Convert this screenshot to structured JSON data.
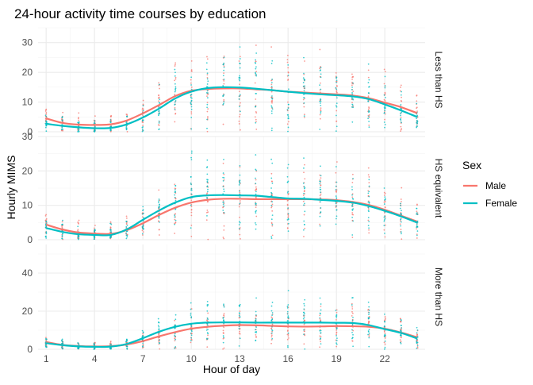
{
  "chart_data": {
    "type": "line",
    "title": "24-hour activity time courses by education",
    "xlabel": "Hour of day",
    "ylabel": "Hourly MIMS",
    "x_ticks": [
      1,
      4,
      7,
      10,
      13,
      16,
      19,
      22
    ],
    "xlim": [
      0.5,
      24.5
    ],
    "grid": true,
    "legend": {
      "title": "Sex",
      "placement": "right",
      "entries": [
        {
          "name": "Male",
          "color": "#F8766D"
        },
        {
          "name": "Female",
          "color": "#00BFC4"
        }
      ]
    },
    "x": [
      1,
      2,
      3,
      4,
      5,
      6,
      7,
      8,
      9,
      10,
      11,
      12,
      13,
      14,
      15,
      16,
      17,
      18,
      19,
      20,
      21,
      22,
      23,
      24
    ],
    "panels": [
      {
        "label": "Less than HS",
        "ylim": [
          0,
          35
        ],
        "y_ticks": [
          0,
          10,
          20,
          30
        ],
        "series": [
          {
            "name": "Male",
            "values": [
              4.5,
              3.0,
              2.4,
              2.3,
              2.5,
              3.8,
              6.2,
              9.0,
              12.0,
              13.8,
              14.4,
              14.6,
              14.6,
              14.3,
              14.0,
              13.5,
              13.2,
              12.9,
              12.6,
              12.2,
              11.3,
              9.8,
              8.3,
              6.3
            ]
          },
          {
            "name": "Female",
            "values": [
              2.7,
              2.0,
              1.5,
              1.2,
              1.3,
              2.5,
              4.8,
              7.8,
              11.2,
              13.5,
              14.7,
              15.0,
              14.9,
              14.5,
              14.0,
              13.5,
              13.0,
              12.6,
              12.3,
              11.9,
              11.0,
              9.2,
              7.2,
              5.0
            ]
          }
        ],
        "points_range": {
          "min": 0,
          "max": 34
        }
      },
      {
        "label": "HS equivalent",
        "ylim": [
          0,
          30
        ],
        "y_ticks": [
          0,
          10,
          20,
          30
        ],
        "series": [
          {
            "name": "Male",
            "values": [
              4.4,
              3.0,
              2.1,
              1.8,
              1.7,
              2.8,
              4.8,
              7.2,
              9.3,
              10.8,
              11.6,
              11.9,
              11.9,
              11.8,
              11.8,
              11.8,
              11.8,
              11.7,
              11.5,
              11.0,
              10.1,
              8.7,
              7.0,
              5.3
            ]
          },
          {
            "name": "Female",
            "values": [
              3.4,
              2.3,
              1.6,
              1.4,
              1.4,
              3.0,
              5.8,
              8.5,
              10.8,
              12.4,
              12.9,
              13.0,
              12.9,
              12.8,
              12.4,
              12.0,
              11.9,
              11.6,
              11.3,
              10.8,
              9.8,
              8.4,
              6.8,
              5.0
            ]
          }
        ],
        "points_range": {
          "min": 0,
          "max": 29
        }
      },
      {
        "label": "More than HS",
        "ylim": [
          0,
          55
        ],
        "y_ticks": [
          0,
          20,
          40
        ],
        "series": [
          {
            "name": "Male",
            "values": [
              3.8,
              2.3,
              1.7,
              1.5,
              1.6,
              2.5,
              4.3,
              6.8,
              9.0,
              10.8,
              11.8,
              12.4,
              12.7,
              12.6,
              12.3,
              12.0,
              11.9,
              12.0,
              12.2,
              12.1,
              11.8,
              10.8,
              8.8,
              6.3
            ]
          },
          {
            "name": "Female",
            "values": [
              3.2,
              2.2,
              1.5,
              1.3,
              1.4,
              2.8,
              5.8,
              9.2,
              11.8,
              13.4,
              14.0,
              14.1,
              14.1,
              14.0,
              14.0,
              14.0,
              14.0,
              14.0,
              13.9,
              13.8,
              12.7,
              10.6,
              8.6,
              5.7
            ]
          }
        ],
        "points_range": {
          "min": 0,
          "max": 52
        }
      }
    ]
  }
}
